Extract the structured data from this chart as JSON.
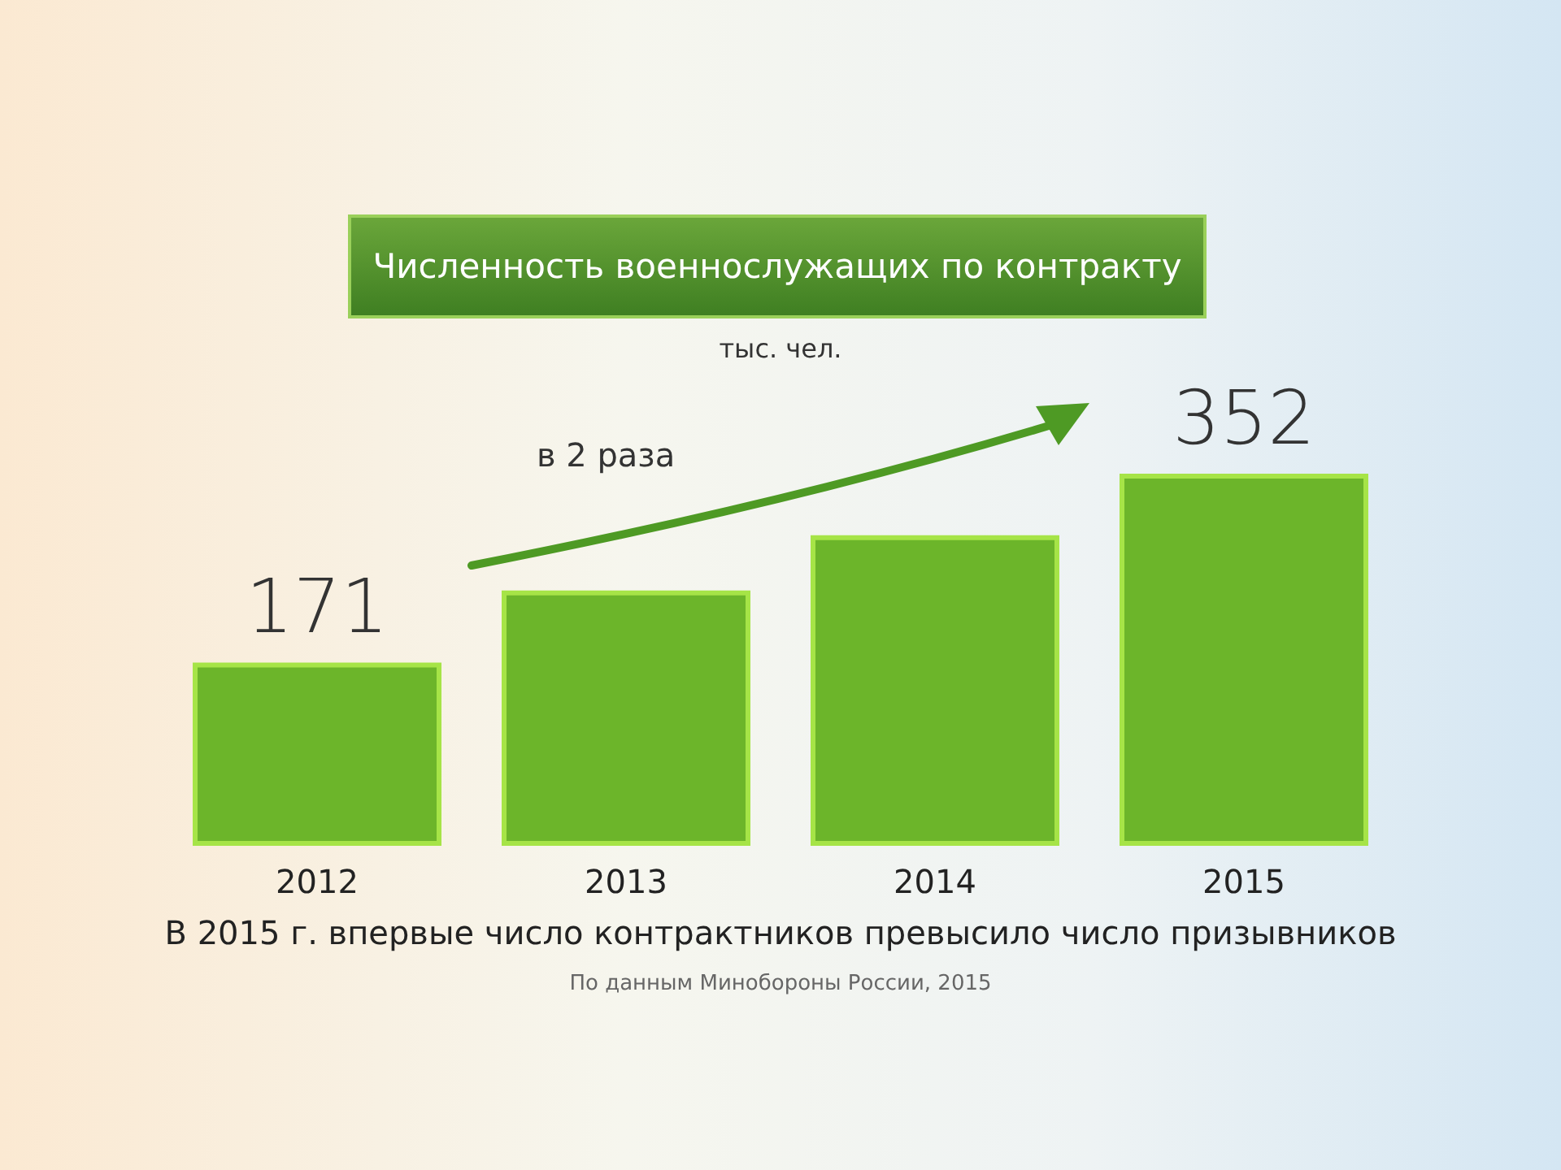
{
  "chart_data": {
    "type": "bar",
    "title": "Численность военнослужащих по контракту",
    "subtitle": "тыс. чел.",
    "categories": [
      "2012",
      "2013",
      "2014",
      "2015"
    ],
    "values": [
      171,
      240,
      293,
      352
    ],
    "value_labels": [
      "171",
      null,
      null,
      "352"
    ],
    "color": "#6cb52a",
    "annotations": [
      "в 2 раза",
      "В 2015 г. впервые число контрактников превысило число призывников",
      "По данным Минобороны России, 2015"
    ]
  }
}
